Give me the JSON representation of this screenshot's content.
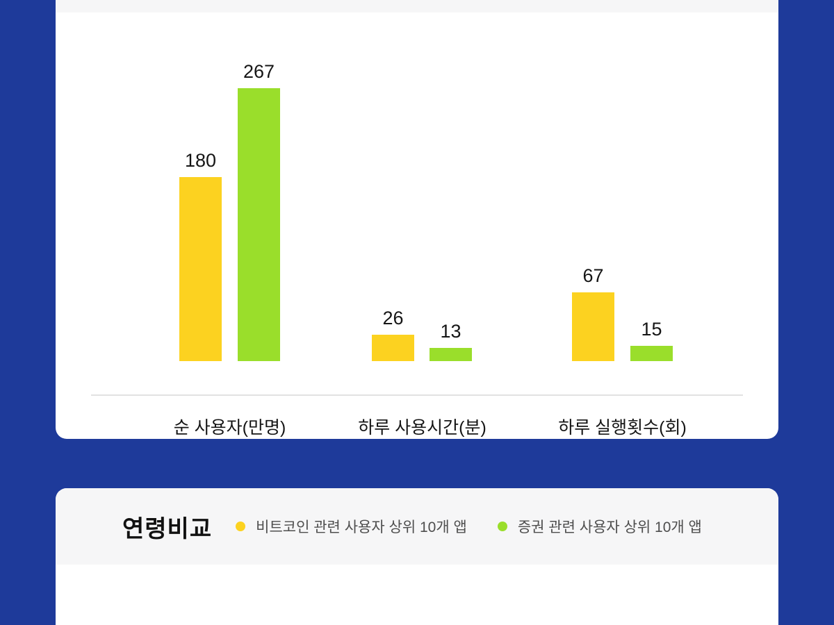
{
  "page": {
    "background_color": "#1E3A9A",
    "card_color": "#FFFFFF",
    "header_strip_color": "#F6F6F7",
    "axis_color": "#E2E2E2"
  },
  "chart_data": {
    "type": "bar",
    "categories": [
      "순 사용자(만명)",
      "하루 사용시간(분)",
      "하루 실행횟수(회)"
    ],
    "series": [
      {
        "name": "비트코인 관련 사용자 상위 10개 앱",
        "color": "#FCD220",
        "values": [
          180,
          26,
          67
        ]
      },
      {
        "name": "증권 관련 사용자 상위 10개 앱",
        "color": "#9ADE2B",
        "values": [
          267,
          13,
          15
        ]
      }
    ],
    "value_labels": [
      "180",
      "267",
      "26",
      "13",
      "67",
      "15"
    ],
    "title": "",
    "xlabel": "",
    "ylabel": "",
    "ylim": [
      0,
      267
    ],
    "grid": false,
    "legend_position": "below-in-next-section-header"
  },
  "age_section": {
    "title": "연령비교",
    "legend": [
      {
        "label": "비트코인 관련 사용자 상위 10개 앱",
        "color": "#FCD220"
      },
      {
        "label": "증권 관련 사용자 상위 10개 앱",
        "color": "#9ADE2B"
      }
    ]
  }
}
